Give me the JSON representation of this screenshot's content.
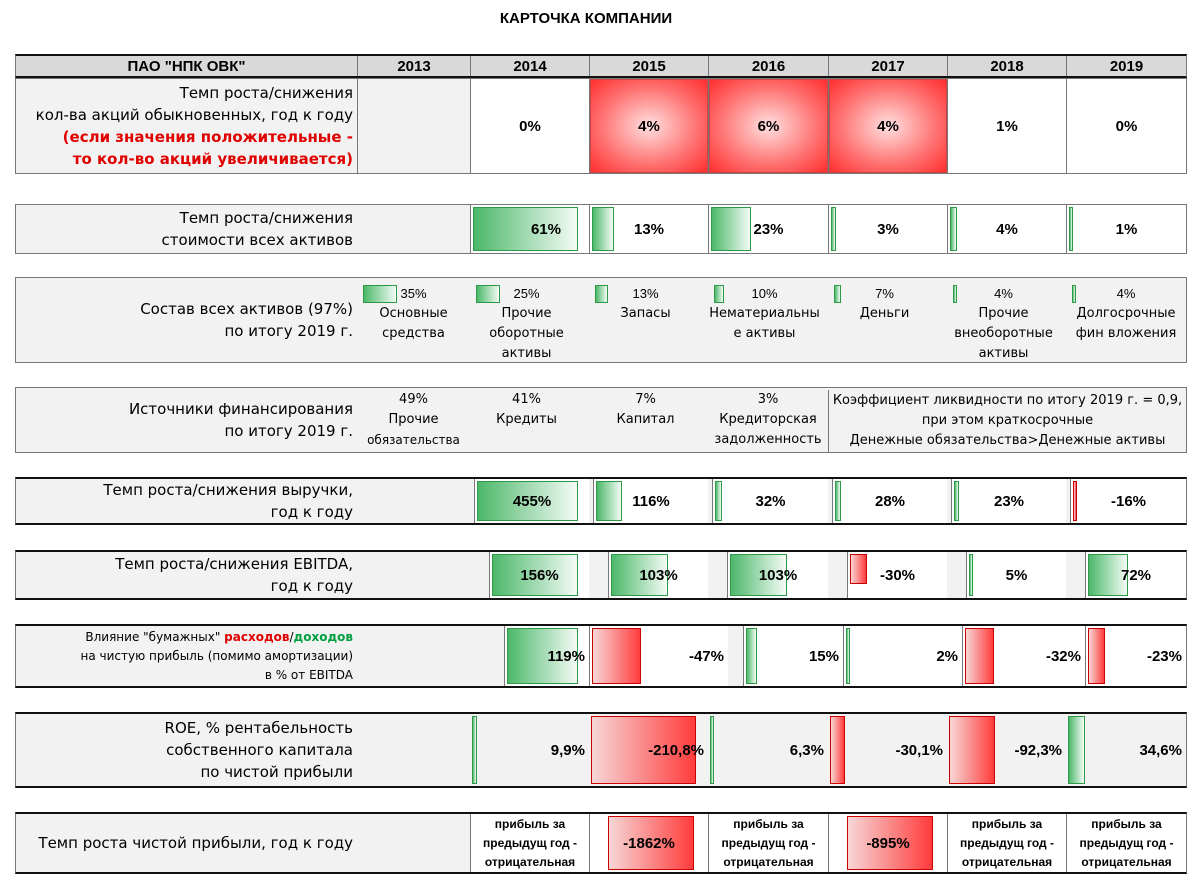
{
  "title": "КАРТОЧКА КОМПАНИИ",
  "company": "ПАО \"НПК ОВК\"",
  "years": [
    "2013",
    "2014",
    "2015",
    "2016",
    "2017",
    "2018",
    "2019"
  ],
  "shares": {
    "label1": "Темп роста/снижения",
    "label2": "кол-ва акций обыкновенных,  год к году",
    "label3": "(если значения положительные -",
    "label4": "то кол-во акций увеличивается)",
    "values": [
      "0%",
      "4%",
      "6%",
      "4%",
      "1%",
      "0%"
    ],
    "highlight": [
      false,
      true,
      true,
      true,
      false,
      false
    ]
  },
  "assets_growth": {
    "label1": "Темп роста/снижения",
    "label2": "стоимости всех активов",
    "values": [
      "61%",
      "13%",
      "23%",
      "3%",
      "4%",
      "1%"
    ],
    "fractions": [
      0.61,
      0.13,
      0.23,
      0.03,
      0.04,
      0.01
    ]
  },
  "assets_structure": {
    "label1": "Состав всех активов (97%)",
    "label2": "по итогу 2019 г.",
    "items": [
      {
        "pct": "35%",
        "frac": 0.35,
        "l1": "Основные",
        "l2": "средства",
        "l3": ""
      },
      {
        "pct": "25%",
        "frac": 0.25,
        "l1": "Прочие",
        "l2": "оборотные",
        "l3": "активы"
      },
      {
        "pct": "13%",
        "frac": 0.13,
        "l1": "Запасы",
        "l2": "",
        "l3": ""
      },
      {
        "pct": "10%",
        "frac": 0.1,
        "l1": "Нематериальны",
        "l2": "е активы",
        "l3": ""
      },
      {
        "pct": "7%",
        "frac": 0.07,
        "l1": "Деньги",
        "l2": "",
        "l3": ""
      },
      {
        "pct": "4%",
        "frac": 0.04,
        "l1": "Прочие",
        "l2": "внеоборотные",
        "l3": "активы"
      },
      {
        "pct": "4%",
        "frac": 0.04,
        "l1": "Долгосрочные",
        "l2": "фин вложения",
        "l3": ""
      }
    ]
  },
  "funding": {
    "label1": "Источники финансирования",
    "label2": "по итогу 2019 г.",
    "items": [
      {
        "pct": "49%",
        "l1": "Прочие",
        "l2": "обязательства"
      },
      {
        "pct": "41%",
        "l1": "Кредиты",
        "l2": ""
      },
      {
        "pct": "7%",
        "l1": "Капитал",
        "l2": ""
      },
      {
        "pct": "3%",
        "l1": "Кредиторская",
        "l2": "задолженность"
      }
    ],
    "note1": "Коэффициент ликвидности по итогу 2019 г. = 0,9,",
    "note2": "при этом краткосрочные",
    "note3": "Денежные обязательства>Денежные активы"
  },
  "revenue": {
    "label1": "Темп роста/снижения выручки,",
    "label2": "год к году",
    "values": [
      "455%",
      "116%",
      "32%",
      "28%",
      "23%",
      "-16%"
    ],
    "fractions": [
      4.55,
      1.16,
      0.32,
      0.28,
      0.23,
      -0.16
    ]
  },
  "ebitda": {
    "label1": "Темп роста/снижения EBITDA,",
    "label2": "год к году",
    "values": [
      "156%",
      "103%",
      "103%",
      "-30%",
      "5%",
      "72%"
    ],
    "fractions": [
      1.56,
      1.03,
      1.03,
      -0.3,
      0.05,
      0.72
    ]
  },
  "paper": {
    "label_prefix": "Влияние \"бумажных\"",
    "label_red": "расходов",
    "label_sep": "/",
    "label_green": "доходов",
    "label2": "на чистую прибыль (помимо амортизации)",
    "label3": "в % от EBITDA",
    "values": [
      "119%",
      "-47%",
      "15%",
      "2%",
      "-32%",
      "-23%"
    ],
    "fractions": [
      1.19,
      -0.47,
      0.15,
      0.02,
      -0.32,
      -0.23
    ]
  },
  "roe": {
    "label1": "ROE, % рентабельность",
    "label2": "собственного капитала",
    "label3": "по чистой прибыли",
    "values": [
      "9,9%",
      "-210,8%",
      "6,3%",
      "-30,1%",
      "-92,3%",
      "34,6%"
    ],
    "fractions": [
      0.099,
      -2.108,
      0.063,
      -0.301,
      -0.923,
      0.346
    ]
  },
  "profit": {
    "label1": "Темп роста чистой прибыли, год к году",
    "prev_l1": "прибыль за",
    "prev_l2": "предыдущ год -",
    "prev_l3": "отрицательная",
    "v2015": "-1862%",
    "v2017": "-895%"
  },
  "colors": {
    "positive": "#4cb86a",
    "negative": "#ff3c3c",
    "highlight": "#e00000",
    "income": "#00a040"
  }
}
